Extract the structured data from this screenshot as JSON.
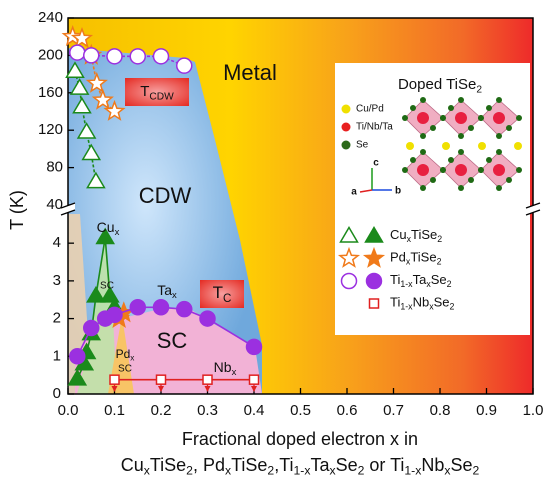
{
  "chart_data": [
    {
      "type": "scatter",
      "xlim": [
        0,
        1
      ],
      "ylim": [
        40,
        240
      ],
      "yticks": [
        40,
        80,
        120,
        160,
        200,
        240
      ],
      "series": [
        {
          "name": "CuxTiSe2",
          "marker": "triangle",
          "fill": "open",
          "color": "#1b8a1b",
          "x": [
            0.015,
            0.025,
            0.03,
            0.04,
            0.05,
            0.06
          ],
          "values": [
            183,
            165,
            145,
            118,
            95,
            65
          ]
        },
        {
          "name": "PdxTiSe2",
          "marker": "star",
          "fill": "open",
          "color": "#f07a1a",
          "x": [
            0.01,
            0.03,
            0.05,
            0.062,
            0.075,
            0.1
          ],
          "values": [
            220,
            218,
            200,
            170,
            152,
            140
          ]
        },
        {
          "name": "Ti1-xTaxSe2",
          "marker": "circle",
          "fill": "open",
          "color": "#9b30e0",
          "x": [
            0.02,
            0.05,
            0.1,
            0.15,
            0.2,
            0.25
          ],
          "values": [
            203,
            200,
            199,
            199,
            199,
            189
          ]
        }
      ],
      "annotations": [
        "TCDW"
      ]
    },
    {
      "type": "scatter",
      "xlim": [
        0,
        1
      ],
      "ylim": [
        0,
        4.8
      ],
      "yticks": [
        0,
        1,
        2,
        3,
        4
      ],
      "xticks": [
        {
          "value": 0,
          "label": "0.0"
        },
        {
          "value": 0.1,
          "label": "0.1"
        },
        {
          "value": 0.2,
          "label": "0.2"
        },
        {
          "value": 0.3,
          "label": "0.3"
        },
        {
          "value": 0.4,
          "label": "0.4"
        },
        {
          "value": 0.5,
          "label": "0.5"
        },
        {
          "value": 0.6,
          "label": "0.6"
        },
        {
          "value": 0.7,
          "label": "0.7"
        },
        {
          "value": 0.8,
          "label": "0.8"
        },
        {
          "value": 0.9,
          "label": "0.9"
        },
        {
          "value": 1,
          "label": "1.0"
        }
      ],
      "xlabel": [
        "Fractional doped electron x in",
        "CuxTiSe2, PdxTiSe2,Ti1-xTaxSe2 or Ti1-xNbxSe2"
      ],
      "ylabel": "T (K)",
      "series": [
        {
          "name": "CuxTiSe2",
          "marker": "triangle",
          "fill": "filled",
          "color": "#1b8a1b",
          "x": [
            0.02,
            0.035,
            0.04,
            0.05,
            0.06,
            0.08,
            0.09,
            0.1
          ],
          "values": [
            0.4,
            0.8,
            1.1,
            1.6,
            2.6,
            4.15,
            2.6,
            2.3
          ]
        },
        {
          "name": "PdxTiSe2",
          "marker": "star",
          "fill": "filled",
          "color": "#f07a1a",
          "x": [
            0.11,
            0.12
          ],
          "values": [
            2.0,
            2.15
          ]
        },
        {
          "name": "Ti1-xTaxSe2",
          "marker": "circle",
          "fill": "filled",
          "color": "#9b30e0",
          "x": [
            0.02,
            0.05,
            0.08,
            0.1,
            0.15,
            0.2,
            0.25,
            0.3,
            0.4
          ],
          "values": [
            1.0,
            1.75,
            2.0,
            2.1,
            2.3,
            2.3,
            2.25,
            2.0,
            1.25
          ]
        },
        {
          "name": "Ti1-xNbxSe2",
          "marker": "square",
          "fill": "open",
          "color": "#e02020",
          "upper_limit": true,
          "x": [
            0.1,
            0.2,
            0.3,
            0.4
          ],
          "values": [
            0.38,
            0.38,
            0.38,
            0.38
          ]
        }
      ],
      "annotations": [
        "Metal",
        "CDW",
        "SC",
        "Cux",
        "SC",
        "Tax",
        "Pdx",
        "SC",
        "Nbx",
        "TC"
      ]
    }
  ],
  "inset": {
    "title": "Doped TiSe2",
    "atoms": [
      "Cu/Pd",
      "Ti/Nb/Ta",
      "Se"
    ],
    "axes": [
      "a",
      "b",
      "c"
    ]
  }
}
